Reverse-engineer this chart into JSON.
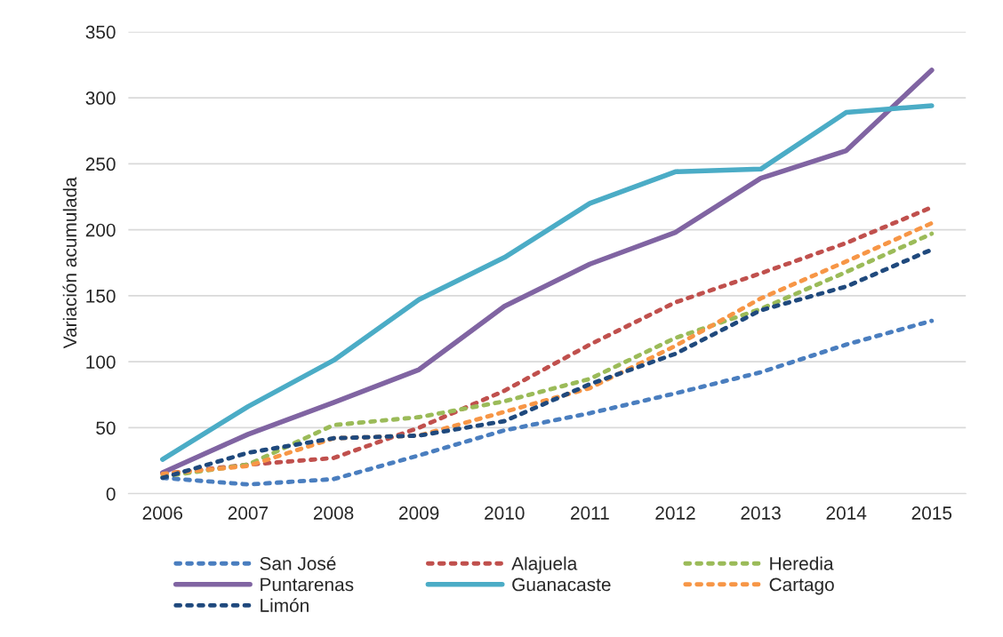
{
  "chart_data": {
    "type": "line",
    "ylabel": "Variación acumulada",
    "categories": [
      "2006",
      "2007",
      "2008",
      "2009",
      "2010",
      "2011",
      "2012",
      "2013",
      "2014",
      "2015"
    ],
    "ylim": [
      0,
      350
    ],
    "yticks": [
      0,
      50,
      100,
      150,
      200,
      250,
      300,
      350
    ],
    "grid": "y",
    "legend": "bottom",
    "marker": "none",
    "series": [
      {
        "name": "San José",
        "color": "#4a7ebf",
        "line_style": "dotted",
        "values": [
          12,
          7,
          11,
          29,
          48,
          61,
          76,
          92,
          113,
          131
        ]
      },
      {
        "name": "Alajuela",
        "color": "#c0504d",
        "line_style": "dotted",
        "values": [
          15,
          22,
          27,
          50,
          78,
          113,
          145,
          167,
          190,
          217
        ]
      },
      {
        "name": "Heredia",
        "color": "#9bbb59",
        "line_style": "dotted",
        "values": [
          13,
          22,
          52,
          58,
          70,
          87,
          118,
          140,
          168,
          197
        ]
      },
      {
        "name": "Puntarenas",
        "color": "#8064a2",
        "line_style": "solid",
        "values": [
          16,
          45,
          69,
          94,
          142,
          174,
          198,
          239,
          260,
          321
        ]
      },
      {
        "name": "Guanacaste",
        "color": "#4bacc6",
        "line_style": "solid",
        "values": [
          26,
          66,
          101,
          147,
          179,
          220,
          244,
          246,
          289,
          294
        ]
      },
      {
        "name": "Cartago",
        "color": "#f79646",
        "line_style": "dotted",
        "values": [
          15,
          21,
          42,
          44,
          62,
          80,
          112,
          148,
          176,
          205
        ]
      },
      {
        "name": "Limón",
        "color": "#1f497d",
        "line_style": "dotted",
        "values": [
          12,
          31,
          42,
          44,
          55,
          83,
          106,
          139,
          157,
          185
        ]
      }
    ]
  }
}
